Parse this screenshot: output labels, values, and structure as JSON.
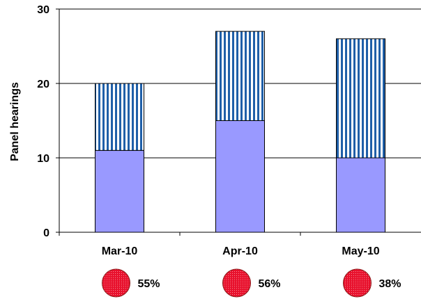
{
  "chart_data": {
    "type": "bar",
    "stacked": true,
    "categories": [
      "Mar-10",
      "Apr-10",
      "May-10"
    ],
    "series": [
      {
        "values": [
          11,
          15,
          10
        ],
        "color": "#9999ff",
        "pattern": "solid"
      },
      {
        "values": [
          9,
          12,
          16
        ],
        "color": "#1f5fa8",
        "pattern": "vertical-stripes"
      }
    ],
    "ylabel": "Panel hearings",
    "ylim": [
      0,
      30
    ],
    "yticks": [
      0,
      10,
      20,
      30
    ],
    "grid": true,
    "percent_indicators": [
      {
        "label": "55%",
        "color": "#e8112d"
      },
      {
        "label": "56%",
        "color": "#e8112d"
      },
      {
        "label": "38%",
        "color": "#e8112d"
      }
    ]
  }
}
